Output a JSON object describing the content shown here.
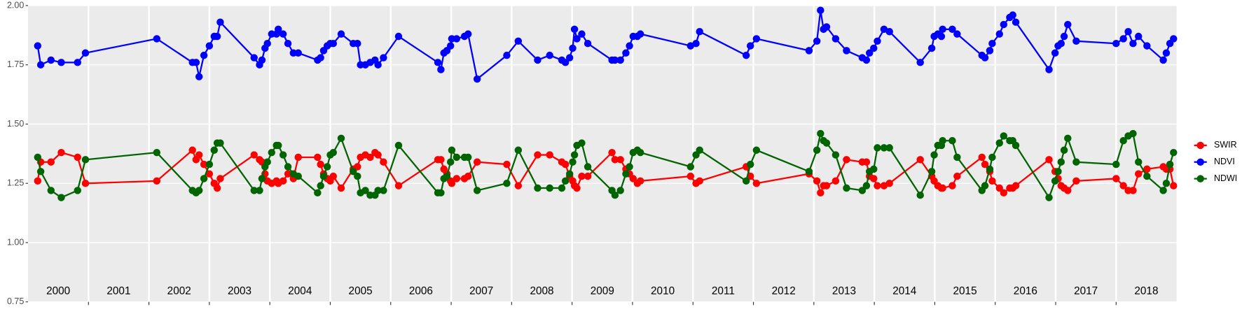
{
  "chart_data": {
    "type": "line",
    "x": [
      2000.16,
      2000.21,
      2000.38,
      2000.55,
      2000.82,
      2000.95,
      2002.13,
      2002.72,
      2002.78,
      2002.83,
      2002.91,
      2003.0,
      2003.08,
      2003.13,
      2003.18,
      2003.74,
      2003.83,
      2003.87,
      2003.92,
      2003.96,
      2004.03,
      2004.11,
      2004.14,
      2004.22,
      2004.3,
      2004.39,
      2004.47,
      2004.79,
      2004.84,
      2004.89,
      2004.95,
      2005.0,
      2005.05,
      2005.18,
      2005.38,
      2005.45,
      2005.5,
      2005.58,
      2005.66,
      2005.74,
      2005.79,
      2005.88,
      2006.13,
      2006.78,
      2006.83,
      2006.88,
      2006.93,
      2006.99,
      2007.01,
      2007.09,
      2007.22,
      2007.28,
      2007.43,
      2007.92,
      2008.11,
      2008.43,
      2008.63,
      2008.83,
      2008.89,
      2008.96,
      2009.01,
      2009.04,
      2009.08,
      2009.16,
      2009.26,
      2009.66,
      2009.71,
      2009.8,
      2009.89,
      2009.95,
      2010.01,
      2010.08,
      2010.13,
      2010.96,
      2011.05,
      2011.11,
      2011.88,
      2011.95,
      2012.05,
      2012.92,
      2013.05,
      2013.11,
      2013.16,
      2013.21,
      2013.36,
      2013.54,
      2013.8,
      2013.87,
      2013.92,
      2013.99,
      2014.05,
      2014.16,
      2014.25,
      2014.76,
      2014.95,
      2014.99,
      2015.05,
      2015.11,
      2015.13,
      2015.29,
      2015.37,
      2015.78,
      2015.83,
      2015.91,
      2015.95,
      2016.07,
      2016.14,
      2016.24,
      2016.29,
      2016.34,
      2016.89,
      2016.99,
      2017.04,
      2017.09,
      2017.14,
      2017.2,
      2017.34,
      2018.0,
      2018.12,
      2018.2,
      2018.28,
      2018.37,
      2018.51,
      2018.78,
      2018.83,
      2018.89,
      2018.95
    ],
    "series": [
      {
        "name": "SWIR",
        "color": "#ff0000",
        "values": [
          1.26,
          1.34,
          1.34,
          1.38,
          1.36,
          1.25,
          1.26,
          1.39,
          1.35,
          1.37,
          1.33,
          1.29,
          1.25,
          1.23,
          1.27,
          1.37,
          1.35,
          1.34,
          1.29,
          1.26,
          1.25,
          1.26,
          1.25,
          1.26,
          1.29,
          1.27,
          1.36,
          1.36,
          1.33,
          1.29,
          1.27,
          1.26,
          1.28,
          1.23,
          1.31,
          1.32,
          1.36,
          1.37,
          1.36,
          1.38,
          1.37,
          1.34,
          1.24,
          1.35,
          1.35,
          1.31,
          1.29,
          1.26,
          1.25,
          1.27,
          1.27,
          1.28,
          1.34,
          1.33,
          1.24,
          1.37,
          1.37,
          1.34,
          1.33,
          1.28,
          1.26,
          1.24,
          1.23,
          1.28,
          1.28,
          1.38,
          1.35,
          1.35,
          1.31,
          1.29,
          1.27,
          1.25,
          1.26,
          1.28,
          1.25,
          1.26,
          1.32,
          1.28,
          1.25,
          1.29,
          1.26,
          1.21,
          1.24,
          1.24,
          1.26,
          1.35,
          1.34,
          1.34,
          1.28,
          1.27,
          1.24,
          1.24,
          1.25,
          1.35,
          1.28,
          1.26,
          1.24,
          1.23,
          1.23,
          1.24,
          1.28,
          1.36,
          1.33,
          1.3,
          1.26,
          1.23,
          1.21,
          1.23,
          1.23,
          1.24,
          1.35,
          1.3,
          1.27,
          1.24,
          1.23,
          1.22,
          1.26,
          1.27,
          1.24,
          1.22,
          1.22,
          1.29,
          1.31,
          1.32,
          1.31,
          1.31,
          1.24
        ]
      },
      {
        "name": "NDVI",
        "color": "#0000ff",
        "values": [
          1.83,
          1.75,
          1.77,
          1.76,
          1.76,
          1.8,
          1.86,
          1.76,
          1.76,
          1.7,
          1.79,
          1.83,
          1.87,
          1.87,
          1.93,
          1.78,
          1.75,
          1.77,
          1.82,
          1.84,
          1.88,
          1.88,
          1.9,
          1.88,
          1.84,
          1.8,
          1.8,
          1.77,
          1.78,
          1.81,
          1.83,
          1.84,
          1.84,
          1.88,
          1.84,
          1.84,
          1.75,
          1.75,
          1.76,
          1.77,
          1.75,
          1.78,
          1.87,
          1.76,
          1.73,
          1.8,
          1.81,
          1.83,
          1.86,
          1.86,
          1.87,
          1.88,
          1.69,
          1.79,
          1.85,
          1.77,
          1.79,
          1.77,
          1.76,
          1.78,
          1.82,
          1.9,
          1.86,
          1.88,
          1.84,
          1.77,
          1.77,
          1.77,
          1.8,
          1.83,
          1.87,
          1.87,
          1.88,
          1.83,
          1.84,
          1.89,
          1.79,
          1.83,
          1.86,
          1.81,
          1.85,
          1.98,
          1.9,
          1.91,
          1.86,
          1.81,
          1.78,
          1.77,
          1.8,
          1.82,
          1.85,
          1.9,
          1.89,
          1.76,
          1.82,
          1.87,
          1.88,
          1.87,
          1.9,
          1.9,
          1.88,
          1.79,
          1.78,
          1.81,
          1.84,
          1.88,
          1.92,
          1.95,
          1.96,
          1.93,
          1.73,
          1.8,
          1.83,
          1.84,
          1.87,
          1.92,
          1.85,
          1.84,
          1.86,
          1.89,
          1.84,
          1.87,
          1.83,
          1.77,
          1.8,
          1.84,
          1.86
        ]
      },
      {
        "name": "NDWI",
        "color": "#006400",
        "values": [
          1.36,
          1.3,
          1.22,
          1.19,
          1.22,
          1.35,
          1.38,
          1.22,
          1.21,
          1.22,
          1.27,
          1.33,
          1.39,
          1.42,
          1.42,
          1.22,
          1.22,
          1.27,
          1.32,
          1.34,
          1.38,
          1.41,
          1.41,
          1.37,
          1.32,
          1.29,
          1.28,
          1.21,
          1.24,
          1.28,
          1.32,
          1.37,
          1.38,
          1.44,
          1.3,
          1.28,
          1.21,
          1.22,
          1.2,
          1.2,
          1.22,
          1.22,
          1.41,
          1.21,
          1.21,
          1.27,
          1.28,
          1.34,
          1.39,
          1.36,
          1.36,
          1.36,
          1.22,
          1.25,
          1.39,
          1.23,
          1.23,
          1.23,
          1.26,
          1.29,
          1.34,
          1.37,
          1.41,
          1.42,
          1.32,
          1.22,
          1.2,
          1.22,
          1.29,
          1.32,
          1.38,
          1.39,
          1.38,
          1.32,
          1.37,
          1.39,
          1.26,
          1.33,
          1.39,
          1.3,
          1.39,
          1.46,
          1.43,
          1.42,
          1.37,
          1.23,
          1.22,
          1.24,
          1.3,
          1.31,
          1.4,
          1.4,
          1.4,
          1.2,
          1.3,
          1.37,
          1.41,
          1.41,
          1.43,
          1.43,
          1.36,
          1.22,
          1.24,
          1.31,
          1.36,
          1.42,
          1.45,
          1.43,
          1.43,
          1.41,
          1.19,
          1.26,
          1.3,
          1.34,
          1.39,
          1.44,
          1.34,
          1.33,
          1.43,
          1.45,
          1.46,
          1.34,
          1.28,
          1.22,
          1.25,
          1.33,
          1.38
        ]
      }
    ],
    "xlim": [
      2000,
      2019
    ],
    "xticks": [
      2001,
      2002,
      2003,
      2004,
      2005,
      2006,
      2007,
      2008,
      2009,
      2010,
      2011,
      2012,
      2013,
      2014,
      2015,
      2016,
      2017,
      2018
    ],
    "year_labels": [
      {
        "value": 2000.5,
        "label": "2000"
      },
      {
        "value": 2001.5,
        "label": "2001"
      },
      {
        "value": 2002.5,
        "label": "2002"
      },
      {
        "value": 2003.5,
        "label": "2003"
      },
      {
        "value": 2004.5,
        "label": "2004"
      },
      {
        "value": 2005.5,
        "label": "2005"
      },
      {
        "value": 2006.5,
        "label": "2006"
      },
      {
        "value": 2007.5,
        "label": "2007"
      },
      {
        "value": 2008.5,
        "label": "2008"
      },
      {
        "value": 2009.5,
        "label": "2009"
      },
      {
        "value": 2010.5,
        "label": "2010"
      },
      {
        "value": 2011.5,
        "label": "2011"
      },
      {
        "value": 2012.5,
        "label": "2012"
      },
      {
        "value": 2013.5,
        "label": "2013"
      },
      {
        "value": 2014.5,
        "label": "2014"
      },
      {
        "value": 2015.5,
        "label": "2015"
      },
      {
        "value": 2016.5,
        "label": "2016"
      },
      {
        "value": 2017.5,
        "label": "2017"
      },
      {
        "value": 2018.5,
        "label": "2018"
      }
    ],
    "ylim": [
      0.75,
      2.0
    ],
    "yticks": [
      {
        "value": 0.75,
        "label": "0.75"
      },
      {
        "value": 1.0,
        "label": "1.00"
      },
      {
        "value": 1.25,
        "label": "1.25"
      },
      {
        "value": 1.5,
        "label": "1.50"
      },
      {
        "value": 1.75,
        "label": "1.75"
      },
      {
        "value": 2.0,
        "label": "2.00"
      }
    ],
    "grid": true,
    "legend": "right"
  }
}
